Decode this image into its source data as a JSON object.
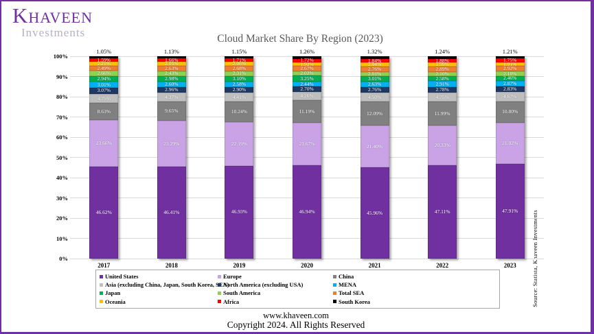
{
  "brand": {
    "logo_main": "Khaveen",
    "logo_sub": "Investments",
    "accent_color": "#7030A0"
  },
  "title": "Cloud Market Share By Region (2023)",
  "source_note": "Source:  Statista, Khaveen Investments",
  "footer": {
    "website": "www.khaveen.com",
    "copyright": "Copyright 2024. All Rights Reserved"
  },
  "chart_data": {
    "type": "bar",
    "stacked": true,
    "normalized_to_100_percent": true,
    "title": "Cloud Market Share By Region (2023)",
    "xlabel": "",
    "ylabel": "",
    "ylim": [
      0,
      100
    ],
    "grid": true,
    "legend_position": "bottom",
    "y_ticks": [
      "0%",
      "10%",
      "20%",
      "30%",
      "40%",
      "50%",
      "60%",
      "70%",
      "80%",
      "90%",
      "100%"
    ],
    "categories": [
      "2017",
      "2018",
      "2019",
      "2020",
      "2021",
      "2022",
      "2023"
    ],
    "series": [
      {
        "name": "United States",
        "color": "#7030A0",
        "values": [
          46.62,
          46.41,
          46.93,
          46.94,
          45.96,
          47.11,
          47.91
        ]
      },
      {
        "name": "Europe",
        "color": "#C9A3E6",
        "values": [
          23.66,
          23.29,
          22.19,
          21.67,
          21.4,
          20.33,
          21.02
        ]
      },
      {
        "name": "China",
        "color": "#808080",
        "values": [
          8.63,
          9.65,
          10.24,
          11.19,
          12.09,
          11.99,
          10.8
        ]
      },
      {
        "name": "Asia (excluding China, Japan, South Korea, SEA)",
        "color": "#BFBFBF",
        "values": [
          4.75,
          4.37,
          4.41,
          4.26,
          4.5,
          4.75,
          4.67
        ]
      },
      {
        "name": "North America (excluding USA)",
        "color": "#1F3864",
        "values": [
          3.07,
          2.96,
          2.9,
          2.7,
          2.76,
          2.78,
          2.83
        ]
      },
      {
        "name": "MENA",
        "color": "#00B0F0",
        "values": [
          3.01,
          2.6,
          2.58,
          2.44,
          2.63,
          2.91,
          2.87
        ]
      },
      {
        "name": "Japan",
        "color": "#00B050",
        "values": [
          2.94,
          2.98,
          3.1,
          3.25,
          3.01,
          2.58,
          2.46
        ]
      },
      {
        "name": "South America",
        "color": "#92D050",
        "values": [
          2.66,
          2.43,
          2.31,
          2.02,
          2.01,
          2.1,
          2.18
        ]
      },
      {
        "name": "Total SEA",
        "color": "#ED7D31",
        "values": [
          2.49,
          2.63,
          2.68,
          2.67,
          2.76,
          2.89,
          2.92
        ]
      },
      {
        "name": "Oceania",
        "color": "#FFC000",
        "values": [
          2.21,
          2.05,
          2.06,
          1.92,
          2.04,
          1.99,
          1.91
        ]
      },
      {
        "name": "Africa",
        "color": "#FF0000",
        "values": [
          1.59,
          1.66,
          1.71,
          1.72,
          1.84,
          1.88,
          1.75
        ]
      },
      {
        "name": "South Korea",
        "color": "#000000",
        "values": [
          1.05,
          1.13,
          1.15,
          1.26,
          1.32,
          1.24,
          1.21
        ]
      }
    ],
    "top_labels_series": "South Korea"
  }
}
